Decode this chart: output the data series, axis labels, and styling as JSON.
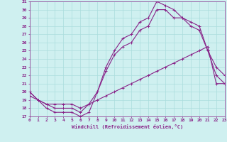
{
  "xlabel": "Windchill (Refroidissement éolien,°C)",
  "xlim": [
    0,
    23
  ],
  "ylim": [
    17,
    31
  ],
  "yticks": [
    17,
    18,
    19,
    20,
    21,
    22,
    23,
    24,
    25,
    26,
    27,
    28,
    29,
    30,
    31
  ],
  "xticks": [
    0,
    1,
    2,
    3,
    4,
    5,
    6,
    7,
    8,
    9,
    10,
    11,
    12,
    13,
    14,
    15,
    16,
    17,
    18,
    19,
    20,
    21,
    22,
    23
  ],
  "bg_color": "#cff0f0",
  "grid_color": "#aadddd",
  "line_color": "#882288",
  "line1_x": [
    0,
    1,
    2,
    3,
    4,
    5,
    6,
    7,
    8,
    9,
    10,
    11,
    12,
    13,
    14,
    15,
    16,
    17,
    18,
    19,
    20,
    21,
    22,
    23
  ],
  "line1_y": [
    20,
    19,
    18,
    17.5,
    17.5,
    17.5,
    17,
    17.5,
    20,
    23,
    25,
    26.5,
    27,
    28.5,
    29,
    31,
    30.5,
    30,
    29,
    28.5,
    28,
    25,
    22,
    21
  ],
  "line2_x": [
    0,
    1,
    2,
    3,
    4,
    5,
    6,
    7,
    8,
    9,
    10,
    11,
    12,
    13,
    14,
    15,
    16,
    17,
    18,
    19,
    20,
    21,
    22,
    23
  ],
  "line2_y": [
    20,
    19,
    18.5,
    18,
    18,
    18,
    17.5,
    18.5,
    20,
    22.5,
    24.5,
    25.5,
    26,
    27.5,
    28,
    30,
    30,
    29,
    29,
    28,
    27.5,
    25,
    23,
    22
  ],
  "line3_x": [
    0,
    1,
    2,
    3,
    4,
    5,
    6,
    7,
    8,
    9,
    10,
    11,
    12,
    13,
    14,
    15,
    16,
    17,
    18,
    19,
    20,
    21,
    22,
    23
  ],
  "line3_y": [
    19.5,
    19,
    18.5,
    18.5,
    18.5,
    18.5,
    18,
    18.5,
    19,
    19.5,
    20,
    20.5,
    21,
    21.5,
    22,
    22.5,
    23,
    23.5,
    24,
    24.5,
    25,
    25.5,
    21,
    21
  ]
}
